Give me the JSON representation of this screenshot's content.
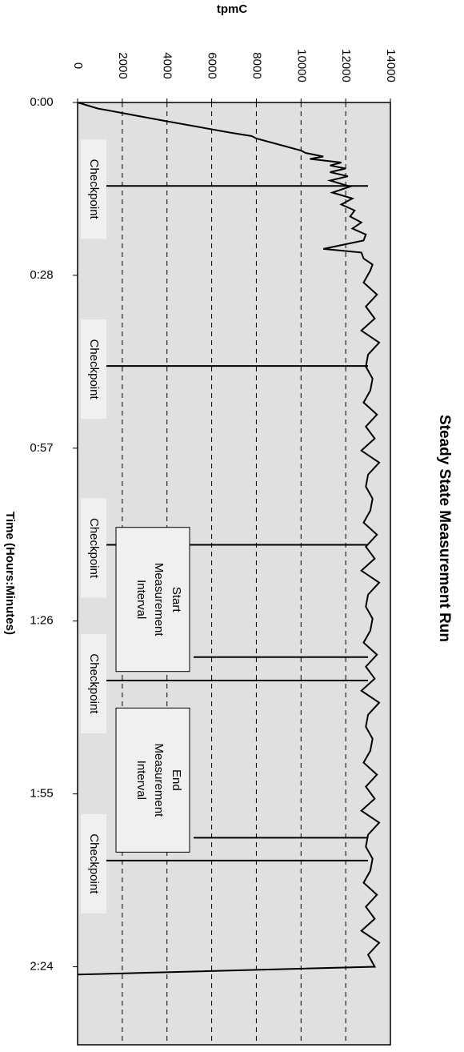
{
  "chart_data": {
    "type": "line",
    "title": "Steady State Measurement Run",
    "x_label": "Time (Hours:Minutes)",
    "y_label": "tpmC",
    "x": [
      0,
      1,
      3,
      5,
      5.6,
      6,
      7,
      8,
      8.4,
      9,
      9.4,
      10,
      10.5,
      11,
      11.6,
      12.3,
      13,
      14,
      15,
      16,
      17,
      18,
      19,
      20,
      21,
      22,
      23,
      24.4,
      25,
      26,
      27,
      28,
      30,
      32,
      34,
      36,
      38,
      40,
      42,
      44,
      46,
      48,
      50,
      52,
      54,
      56,
      58,
      60,
      62,
      64,
      66,
      68,
      70,
      72,
      74,
      76,
      78,
      80,
      82,
      84,
      86,
      88,
      90,
      92,
      94,
      96,
      98,
      100,
      102,
      104,
      106,
      108,
      110,
      112,
      114,
      116,
      118,
      120,
      122,
      124,
      126,
      128,
      130,
      132,
      134,
      136,
      138,
      140,
      142,
      144,
      145.3
    ],
    "values": [
      0,
      900,
      3800,
      6800,
      7800,
      8000,
      9000,
      10000,
      10200,
      11000,
      10400,
      11800,
      11300,
      12000,
      11300,
      12100,
      11300,
      12200,
      11400,
      12300,
      11800,
      12400,
      12200,
      12700,
      12300,
      12900,
      12800,
      11000,
      12700,
      12800,
      13200,
      13100,
      12800,
      13400,
      12900,
      13300,
      12700,
      13500,
      13000,
      12900,
      13200,
      13100,
      12800,
      13400,
      12900,
      13300,
      12700,
      13500,
      13000,
      12900,
      13200,
      13100,
      12800,
      13400,
      12900,
      13300,
      12700,
      13500,
      13000,
      12900,
      13200,
      13100,
      12800,
      13400,
      12900,
      13300,
      12700,
      13500,
      13000,
      12900,
      13200,
      13100,
      12800,
      13400,
      12900,
      13300,
      12700,
      13500,
      13000,
      12900,
      13200,
      13100,
      12800,
      13400,
      12900,
      13300,
      12700,
      13500,
      13000,
      13300,
      0
    ],
    "color": "#000000",
    "xlim": [
      0,
      157
    ],
    "xticks": [
      {
        "value": 0,
        "label": "0:00"
      },
      {
        "value": 28.8,
        "label": "0:28"
      },
      {
        "value": 57.6,
        "label": "0:57"
      },
      {
        "value": 86.4,
        "label": "1:26"
      },
      {
        "value": 115.2,
        "label": "1:55"
      },
      {
        "value": 144,
        "label": "2:24"
      }
    ],
    "ylim": [
      0,
      14000
    ],
    "yticks": [
      0,
      2000,
      4000,
      6000,
      8000,
      10000,
      12000,
      14000
    ],
    "grid": true,
    "annotations": [
      {
        "lines": [
          "Checkpoint"
        ],
        "x": 13.9
      },
      {
        "lines": [
          "Checkpoint"
        ],
        "x": 43.9
      },
      {
        "lines": [
          "Checkpoint"
        ],
        "x": 73.7
      },
      {
        "lines": [
          "Start",
          "Measurement",
          "Interval"
        ],
        "x": 92.4
      },
      {
        "lines": [
          "Checkpoint"
        ],
        "x": 96.3
      },
      {
        "lines": [
          "End",
          "Measurement",
          "Interval"
        ],
        "x": 122.5
      },
      {
        "lines": [
          "Checkpoint"
        ],
        "x": 126.3
      }
    ]
  }
}
